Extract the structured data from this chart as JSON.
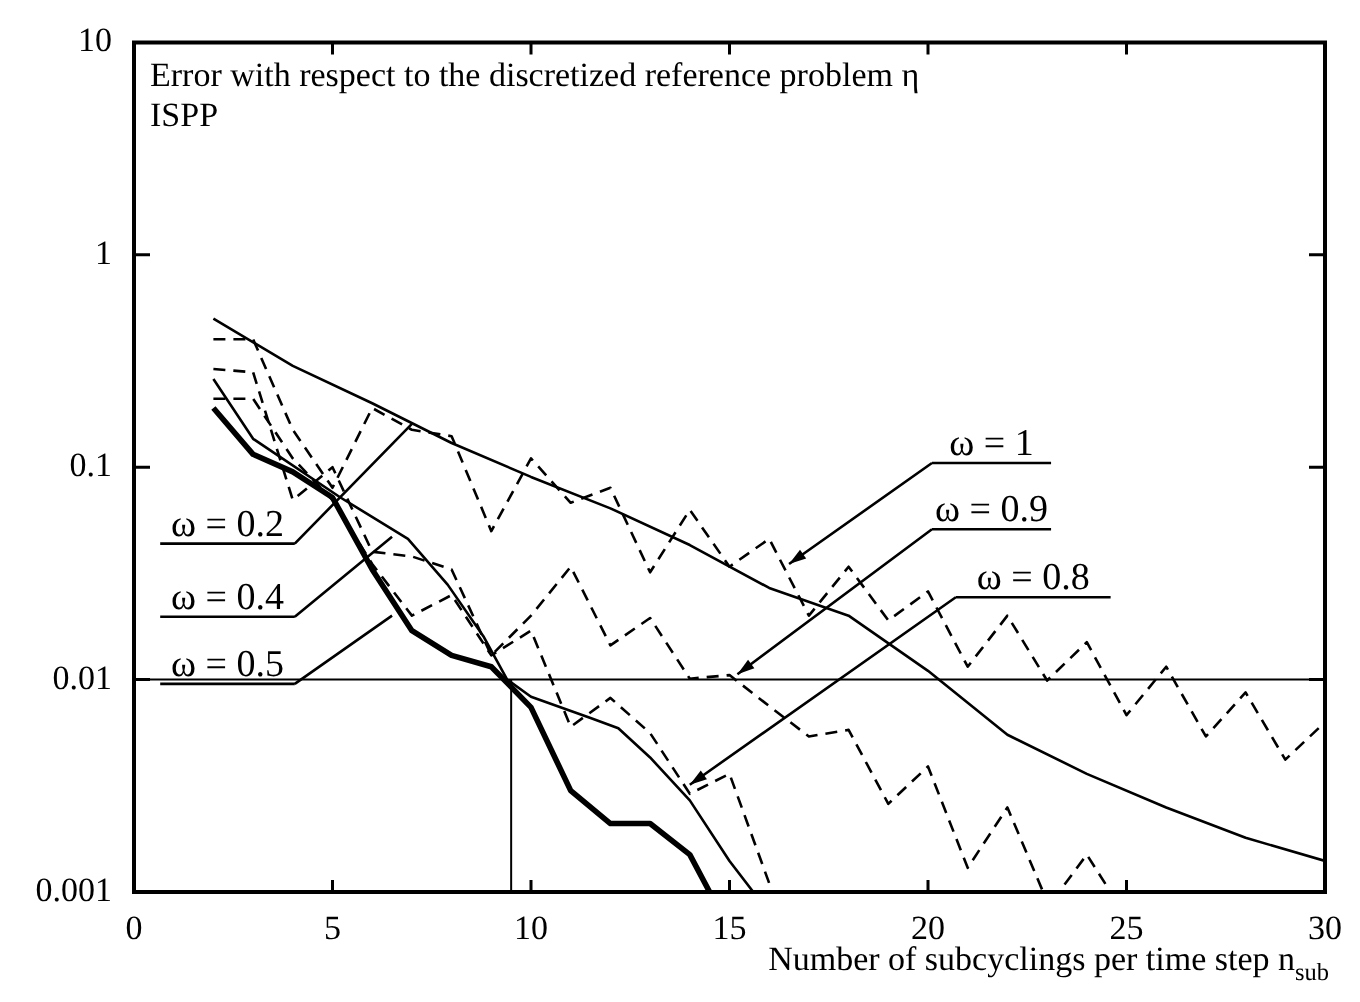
{
  "chart_data": {
    "type": "line",
    "title": "Error with respect to the discretized reference problem η",
    "subtitle": "ISPP",
    "xlabel": "Number of subcyclings per time step n$_{sub}$",
    "log": "y",
    "xlim": [
      0,
      30
    ],
    "xticks": [
      0,
      5,
      10,
      15,
      20,
      25,
      30
    ],
    "ylim": [
      0.001,
      10
    ],
    "yticks": [
      0.001,
      0.01,
      0.1,
      1,
      10
    ],
    "grid": false,
    "legend": false,
    "marker": "none",
    "series": [
      {
        "color": "#000000",
        "line_style": "solid",
        "x": [
          2,
          4,
          6,
          8,
          10,
          12,
          14,
          16,
          18,
          20,
          22,
          24,
          26,
          28,
          30
        ],
        "values": [
          0.5,
          0.3,
          0.2,
          0.13,
          0.09,
          0.064,
          0.043,
          0.027,
          0.02,
          0.011,
          0.0055,
          0.0036,
          0.0025,
          0.0018,
          0.0014
        ]
      },
      {
        "color": "#000000",
        "line_style": "solid",
        "x": [
          2,
          3,
          5.2,
          6.9,
          7.9,
          8.8,
          9.4,
          10,
          11.5,
          12.2,
          13,
          14,
          15,
          15.6
        ],
        "values": [
          0.26,
          0.136,
          0.072,
          0.046,
          0.028,
          0.016,
          0.01,
          0.0083,
          0.0066,
          0.0059,
          0.0043,
          0.0027,
          0.0014,
          0.001
        ]
      },
      {
        "color": "#000000",
        "line_style": "solid",
        "x": [
          2,
          3,
          4,
          5,
          6,
          7,
          8,
          9,
          10,
          11,
          12,
          13,
          14,
          14.5
        ],
        "values": [
          0.19,
          0.115,
          0.095,
          0.072,
          0.033,
          0.017,
          0.013,
          0.0115,
          0.0074,
          0.003,
          0.0021,
          0.0021,
          0.0015,
          0.001
        ]
      },
      {
        "color": "#000000",
        "line_style": "dashed",
        "x": [
          2,
          3,
          4,
          5,
          6,
          7,
          8,
          9,
          10,
          11,
          12,
          13,
          14,
          15,
          16,
          17,
          18,
          19,
          20,
          21,
          22,
          23,
          24,
          25,
          26,
          27,
          28,
          29,
          30
        ],
        "values": [
          0.4,
          0.4,
          0.15,
          0.08,
          0.19,
          0.15,
          0.14,
          0.05,
          0.11,
          0.068,
          0.08,
          0.032,
          0.063,
          0.034,
          0.046,
          0.02,
          0.034,
          0.019,
          0.026,
          0.0115,
          0.02,
          0.0099,
          0.015,
          0.0068,
          0.0115,
          0.0054,
          0.0087,
          0.0042,
          0.0063
        ]
      },
      {
        "color": "#000000",
        "line_style": "dashed",
        "x": [
          2,
          3,
          4,
          5,
          6,
          7,
          8,
          9,
          10,
          11,
          12,
          13,
          14,
          15,
          16,
          17,
          18,
          19,
          20,
          21,
          22,
          22.9,
          23.3,
          24,
          24.6
        ],
        "values": [
          0.29,
          0.28,
          0.07,
          0.1,
          0.04,
          0.038,
          0.033,
          0.013,
          0.02,
          0.034,
          0.0145,
          0.0195,
          0.0101,
          0.0105,
          0.0075,
          0.0054,
          0.0058,
          0.0026,
          0.0039,
          0.0013,
          0.0025,
          0.001,
          0.001,
          0.0015,
          0.001
        ]
      },
      {
        "color": "#000000",
        "line_style": "dashed",
        "x": [
          2,
          3,
          4,
          5,
          6,
          7,
          8,
          9,
          10,
          11,
          12,
          13,
          14,
          15,
          16
        ],
        "values": [
          0.21,
          0.21,
          0.11,
          0.07,
          0.035,
          0.02,
          0.025,
          0.013,
          0.017,
          0.006,
          0.0082,
          0.0056,
          0.0029,
          0.0036,
          0.0011
        ]
      }
    ],
    "ref_lines": [
      {
        "axis": "y",
        "value": 0.01,
        "color": "#000000"
      },
      {
        "axis": "x",
        "value": 9.5,
        "color": "#000000"
      }
    ],
    "annotations": [
      {
        "text": "ω = 0.2",
        "x": 7,
        "y": 0.16
      },
      {
        "text": "ω = 0.4",
        "x": 6.5,
        "y": 0.047
      },
      {
        "text": "ω = 0.5",
        "x": 6.5,
        "y": 0.02
      },
      {
        "text": "ω = 1",
        "x": 16.5,
        "y": 0.035
      },
      {
        "text": "ω = 0.9",
        "x": 15.2,
        "y": 0.0106
      },
      {
        "text": "ω = 0.8",
        "x": 14,
        "y": 0.0032
      }
    ]
  }
}
